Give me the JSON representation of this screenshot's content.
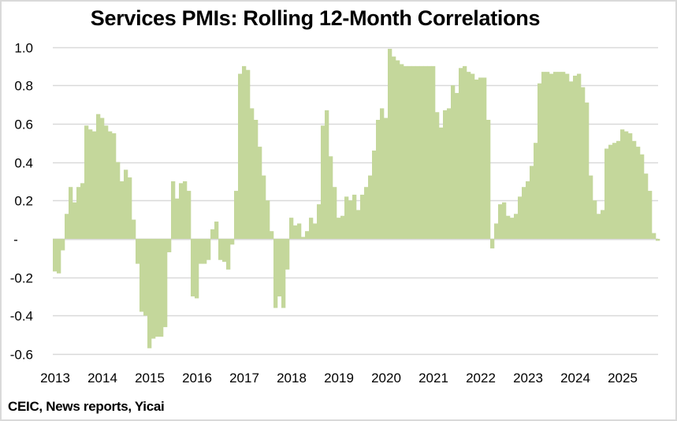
{
  "chart_data": {
    "type": "bar",
    "title": "Services PMIs: Rolling 12-Month Correlations",
    "xlabel": "",
    "ylabel": "",
    "ylim": [
      -0.6,
      1.0
    ],
    "yticks": [
      1.0,
      0.8,
      0.6,
      0.4,
      0.2,
      0,
      -0.2,
      -0.4,
      -0.6
    ],
    "ytick_labels": [
      "1.0",
      "0.8",
      "0.6",
      "0.4",
      "0.2",
      "-",
      "-0.2",
      "-0.4",
      "-0.6"
    ],
    "x_tick_labels": [
      "2013",
      "2014",
      "2015",
      "2016",
      "2017",
      "2018",
      "2019",
      "2020",
      "2021",
      "2022",
      "2023",
      "2024",
      "2025"
    ],
    "x_start": "2013-01",
    "frequency": "monthly",
    "grid": true,
    "legend": "none",
    "bar_color": "#c4d79b",
    "grid_color": "#d9d9d9",
    "values": [
      -0.17,
      -0.18,
      -0.06,
      0.13,
      0.27,
      0.19,
      0.27,
      0.29,
      0.59,
      0.57,
      0.56,
      0.65,
      0.63,
      0.59,
      0.56,
      0.55,
      0.4,
      0.3,
      0.36,
      0.32,
      0.1,
      -0.13,
      -0.38,
      -0.4,
      -0.57,
      -0.52,
      -0.51,
      -0.51,
      -0.46,
      -0.07,
      0.3,
      0.21,
      0.29,
      0.3,
      0.25,
      -0.3,
      -0.31,
      -0.13,
      -0.13,
      -0.11,
      0.05,
      0.09,
      -0.11,
      -0.12,
      -0.16,
      -0.03,
      0.25,
      0.86,
      0.9,
      0.88,
      0.68,
      0.62,
      0.48,
      0.33,
      0.2,
      0.04,
      -0.36,
      -0.3,
      -0.36,
      -0.16,
      0.11,
      0.07,
      0.08,
      0.01,
      0.04,
      0.11,
      0.08,
      0.18,
      0.59,
      0.67,
      0.43,
      0.27,
      0.11,
      0.12,
      0.22,
      0.2,
      0.23,
      0.15,
      0.23,
      0.27,
      0.33,
      0.46,
      0.62,
      0.68,
      0.63,
      0.99,
      0.95,
      0.93,
      0.91,
      0.9,
      0.9,
      0.9,
      0.9,
      0.9,
      0.9,
      0.9,
      0.9,
      0.66,
      0.58,
      0.67,
      0.68,
      0.8,
      0.76,
      0.89,
      0.9,
      0.87,
      0.86,
      0.83,
      0.84,
      0.84,
      0.62,
      -0.05,
      0.08,
      0.18,
      0.19,
      0.12,
      0.11,
      0.13,
      0.22,
      0.27,
      0.3,
      0.38,
      0.5,
      0.81,
      0.87,
      0.87,
      0.86,
      0.87,
      0.87,
      0.87,
      0.86,
      0.82,
      0.85,
      0.86,
      0.79,
      0.71,
      0.33,
      0.2,
      0.13,
      0.15,
      0.47,
      0.49,
      0.5,
      0.51,
      0.57,
      0.56,
      0.55,
      0.51,
      0.48,
      0.44,
      0.34,
      0.25,
      0.03,
      -0.01
    ],
    "source": "CEIC, News reports, Yicai"
  }
}
